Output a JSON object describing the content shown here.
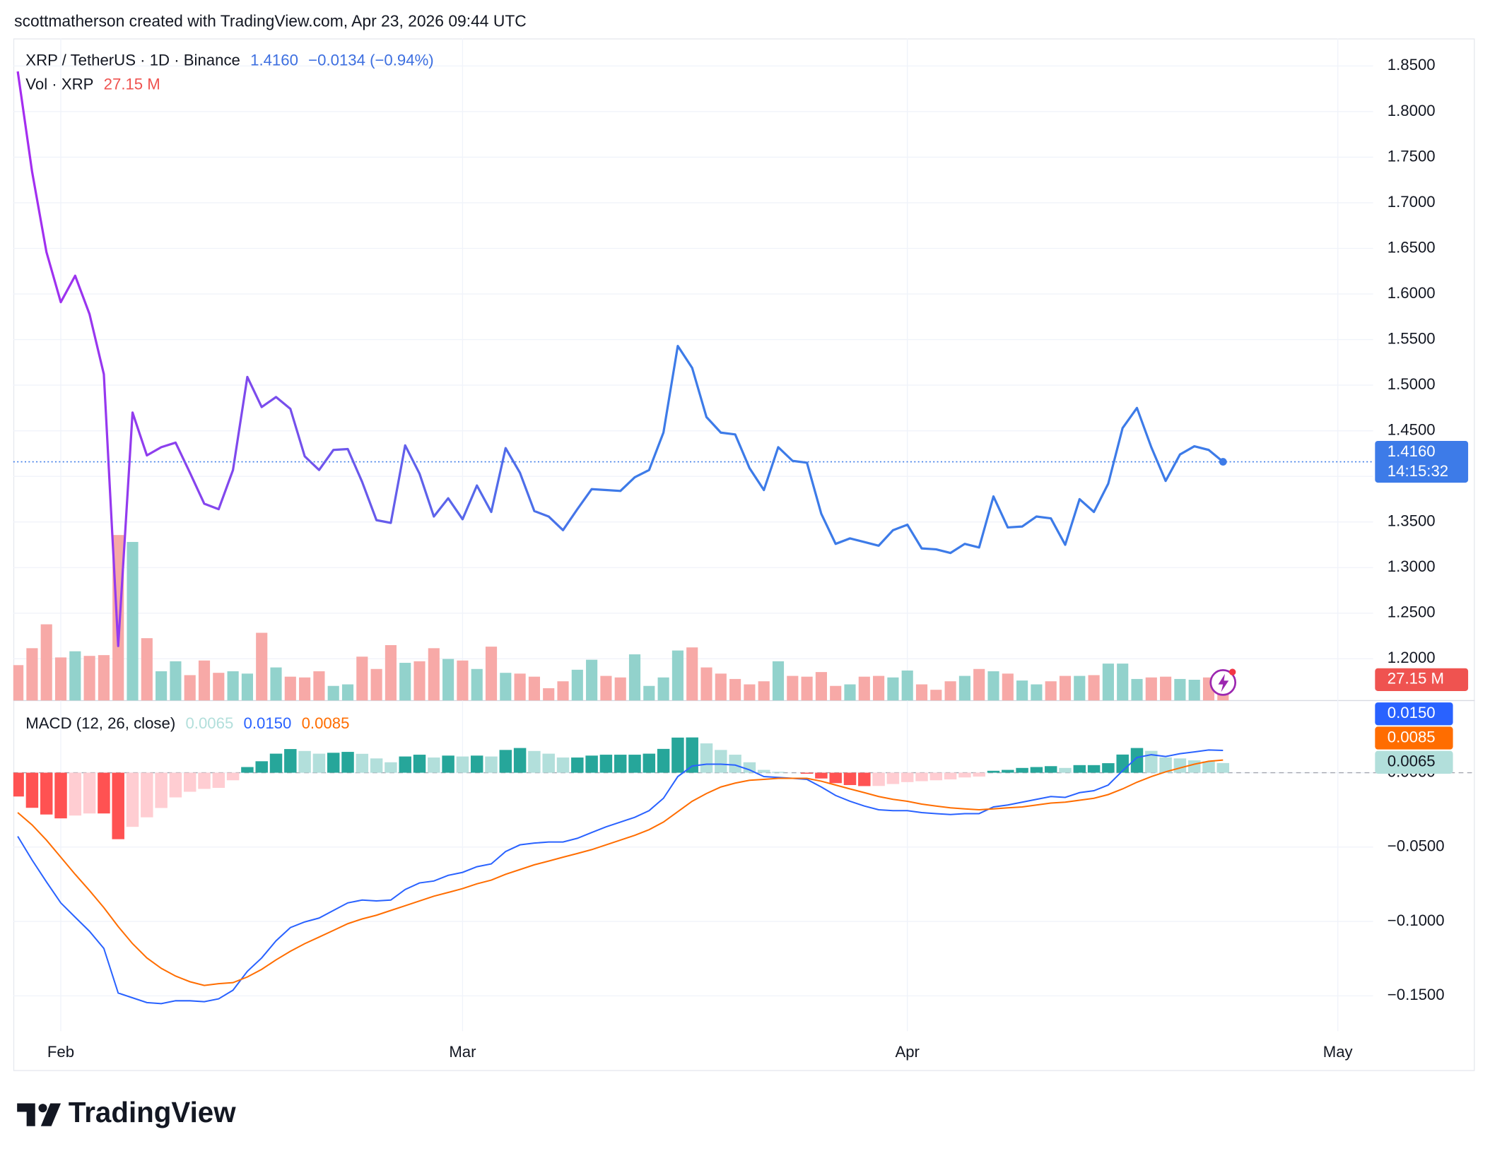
{
  "header": "scottmatherson created with TradingView.com, Apr 23, 2026 09:44 UTC",
  "brand": "TradingView",
  "chart_data": [
    {
      "type": "line",
      "title": "XRP / TetherUS · 1D · Binance",
      "price_label": "1.4160",
      "change_label": "−0.0134 (−0.94%)",
      "countdown_label": "14:15:32",
      "grid": true,
      "x": [
        0,
        1,
        2,
        3,
        4,
        5,
        6,
        7,
        8,
        9,
        10,
        11,
        12,
        13,
        14,
        15,
        16,
        17,
        18,
        19,
        20,
        21,
        22,
        23,
        24,
        25,
        26,
        27,
        28,
        29,
        30,
        31,
        32,
        33,
        34,
        35,
        36,
        37,
        38,
        39,
        40,
        41,
        42,
        43,
        44,
        45,
        46,
        47,
        48,
        49,
        50,
        51,
        52,
        53,
        54,
        55,
        56,
        57,
        58,
        59,
        60,
        61,
        62,
        63,
        64,
        65,
        66,
        67,
        68,
        69,
        70,
        71,
        72,
        73,
        74,
        75,
        76,
        77,
        78,
        79,
        80,
        81,
        82,
        83,
        84
      ],
      "xlim": [
        -0.31,
        94.46
      ],
      "xticks": [
        {
          "value": 3,
          "label": "Feb"
        },
        {
          "value": 31,
          "label": "Mar"
        },
        {
          "value": 62,
          "label": "Apr"
        },
        {
          "value": 92,
          "label": "May"
        }
      ],
      "ylim": [
        1.1542,
        1.8802
      ],
      "yticks": [
        {
          "value": 1.2,
          "label": "1.2000"
        },
        {
          "value": 1.25,
          "label": "1.2500"
        },
        {
          "value": 1.3,
          "label": "1.3000"
        },
        {
          "value": 1.35,
          "label": "1.3500"
        },
        {
          "value": 1.4,
          "label": "1.4000"
        },
        {
          "value": 1.45,
          "label": "1.4500"
        },
        {
          "value": 1.5,
          "label": "1.5000"
        },
        {
          "value": 1.55,
          "label": "1.5500"
        },
        {
          "value": 1.6,
          "label": "1.6000"
        },
        {
          "value": 1.65,
          "label": "1.6500"
        },
        {
          "value": 1.7,
          "label": "1.7000"
        },
        {
          "value": 1.75,
          "label": "1.7500"
        },
        {
          "value": 1.8,
          "label": "1.8000"
        },
        {
          "value": 1.85,
          "label": "1.8500"
        }
      ],
      "series": [
        {
          "color": "#3d7be8",
          "color_start": "#a62cf0",
          "values": [
            1.844,
            1.734,
            1.646,
            1.591,
            1.62,
            1.578,
            1.512,
            1.214,
            1.47,
            1.423,
            1.432,
            1.437,
            1.404,
            1.37,
            1.364,
            1.407,
            1.509,
            1.476,
            1.487,
            1.474,
            1.422,
            1.407,
            1.429,
            1.43,
            1.394,
            1.352,
            1.349,
            1.434,
            1.403,
            1.356,
            1.376,
            1.353,
            1.39,
            1.361,
            1.431,
            1.404,
            1.362,
            1.356,
            1.341,
            1.364,
            1.386,
            1.385,
            1.384,
            1.399,
            1.407,
            1.448,
            1.543,
            1.519,
            1.465,
            1.448,
            1.446,
            1.409,
            1.385,
            1.432,
            1.417,
            1.415,
            1.359,
            1.326,
            1.332,
            1.328,
            1.324,
            1.341,
            1.347,
            1.321,
            1.32,
            1.316,
            1.326,
            1.322,
            1.378,
            1.344,
            1.345,
            1.356,
            1.354,
            1.325,
            1.375,
            1.361,
            1.392,
            1.453,
            1.475,
            1.432,
            1.395,
            1.424,
            1.433,
            1.429,
            1.416
          ]
        }
      ],
      "volume": {
        "name": "Vol · XRP",
        "value_label": "27.15 M",
        "up_color": "#92d2cc",
        "down_color": "#f7a9a7",
        "label_color": "#ef5350",
        "ylim": [
          0,
          860
        ],
        "values": [
          46,
          68,
          99,
          56,
          64,
          58,
          59,
          215,
          206,
          81,
          38,
          51,
          33,
          52,
          36,
          38,
          35,
          88,
          43,
          31,
          30,
          38,
          19,
          21,
          57,
          41,
          72,
          49,
          51,
          68,
          54,
          52,
          41,
          70,
          36,
          35,
          31,
          16,
          25,
          40,
          53,
          32,
          30,
          60,
          19,
          30,
          65,
          69,
          43,
          35,
          28,
          21,
          25,
          51,
          32,
          31,
          37,
          19,
          21,
          31,
          32,
          30,
          39,
          21,
          14,
          25,
          32,
          41,
          38,
          35,
          26,
          21,
          25,
          32,
          32,
          33,
          48,
          48,
          28,
          30,
          31,
          28,
          27,
          30,
          27.15
        ]
      }
    },
    {
      "type": "macd",
      "title": "MACD (12, 26, close)",
      "ylim": [
        -0.1737,
        0.0485
      ],
      "yticks": [
        {
          "value": 0,
          "label": "0.0000"
        },
        {
          "value": -0.05,
          "label": "−0.0500"
        },
        {
          "value": -0.1,
          "label": "−0.1000"
        },
        {
          "value": -0.15,
          "label": "−0.1500"
        }
      ],
      "histogram": {
        "last_label": "0.0065",
        "colors": [
          "#26a69a",
          "#b2dfdb",
          "#ffcdd2",
          "#ff5252"
        ],
        "values": [
          -0.016,
          -0.0236,
          -0.0281,
          -0.0307,
          -0.0288,
          -0.0274,
          -0.0274,
          -0.0447,
          -0.0364,
          -0.03,
          -0.0237,
          -0.0166,
          -0.0128,
          -0.0109,
          -0.0102,
          -0.0051,
          0.0038,
          0.0077,
          0.0128,
          0.0159,
          0.0146,
          0.0128,
          0.0134,
          0.014,
          0.0127,
          0.0096,
          0.007,
          0.0109,
          0.0121,
          0.0102,
          0.0115,
          0.0109,
          0.0115,
          0.0109,
          0.0153,
          0.0166,
          0.0146,
          0.0128,
          0.0102,
          0.0102,
          0.0115,
          0.0121,
          0.0121,
          0.0121,
          0.0128,
          0.016,
          0.0236,
          0.0237,
          0.0197,
          0.0153,
          0.0121,
          0.007,
          0.0019,
          0.0006,
          0,
          -0.0007,
          -0.0039,
          -0.007,
          -0.0083,
          -0.009,
          -0.0089,
          -0.0076,
          -0.0063,
          -0.0057,
          -0.0051,
          -0.0045,
          -0.0032,
          -0.0026,
          0.0013,
          0.0019,
          0.0032,
          0.0038,
          0.0044,
          0.0032,
          0.0051,
          0.0051,
          0.0064,
          0.0122,
          0.0166,
          0.0147,
          0.0103,
          0.0096,
          0.0083,
          0.0076,
          0.0065
        ]
      },
      "series": [
        {
          "color": "#2962ff",
          "last_label": "0.0150",
          "values": [
            -0.0428,
            -0.0587,
            -0.0734,
            -0.0875,
            -0.0971,
            -0.1066,
            -0.1181,
            -0.1481,
            -0.1513,
            -0.1545,
            -0.1552,
            -0.1533,
            -0.1533,
            -0.1539,
            -0.152,
            -0.1462,
            -0.1335,
            -0.1245,
            -0.113,
            -0.1041,
            -0.1003,
            -0.0977,
            -0.0926,
            -0.0875,
            -0.0856,
            -0.0862,
            -0.0856,
            -0.0785,
            -0.0741,
            -0.0728,
            -0.069,
            -0.067,
            -0.0632,
            -0.0613,
            -0.053,
            -0.0485,
            -0.0473,
            -0.0466,
            -0.0466,
            -0.0441,
            -0.0402,
            -0.0364,
            -0.0332,
            -0.03,
            -0.0255,
            -0.0172,
            -0.0026,
            0.0045,
            0.0057,
            0.0057,
            0.0051,
            0.0019,
            -0.0026,
            -0.0032,
            -0.0038,
            -0.0045,
            -0.0096,
            -0.0153,
            -0.0192,
            -0.0224,
            -0.0249,
            -0.0255,
            -0.0255,
            -0.0268,
            -0.0275,
            -0.0281,
            -0.0275,
            -0.0275,
            -0.023,
            -0.0217,
            -0.0198,
            -0.0179,
            -0.016,
            -0.0166,
            -0.0134,
            -0.0121,
            -0.0083,
            0.0013,
            0.0102,
            0.0121,
            0.0109,
            0.0128,
            0.014,
            0.0153,
            0.015
          ]
        },
        {
          "color": "#ff6d00",
          "last_label": "0.0085",
          "values": [
            -0.0268,
            -0.0351,
            -0.0453,
            -0.0568,
            -0.0683,
            -0.0792,
            -0.0907,
            -0.1034,
            -0.1149,
            -0.1245,
            -0.1315,
            -0.1367,
            -0.1405,
            -0.143,
            -0.1418,
            -0.1411,
            -0.1373,
            -0.1322,
            -0.1258,
            -0.12,
            -0.1149,
            -0.1105,
            -0.106,
            -0.1015,
            -0.0983,
            -0.0958,
            -0.0926,
            -0.0894,
            -0.0862,
            -0.083,
            -0.0805,
            -0.0779,
            -0.0747,
            -0.0722,
            -0.0683,
            -0.0651,
            -0.0619,
            -0.0594,
            -0.0568,
            -0.0543,
            -0.0517,
            -0.0485,
            -0.0453,
            -0.0421,
            -0.0383,
            -0.0332,
            -0.0262,
            -0.0192,
            -0.014,
            -0.0096,
            -0.007,
            -0.0051,
            -0.0045,
            -0.0038,
            -0.0038,
            -0.0038,
            -0.0057,
            -0.0083,
            -0.0109,
            -0.0134,
            -0.016,
            -0.0179,
            -0.0192,
            -0.0211,
            -0.0224,
            -0.0236,
            -0.0243,
            -0.0249,
            -0.0243,
            -0.0236,
            -0.023,
            -0.0217,
            -0.0204,
            -0.0198,
            -0.0185,
            -0.0172,
            -0.0147,
            -0.0109,
            -0.0064,
            -0.0026,
            0.0006,
            0.0032,
            0.0057,
            0.0077,
            0.0085
          ]
        }
      ]
    }
  ]
}
